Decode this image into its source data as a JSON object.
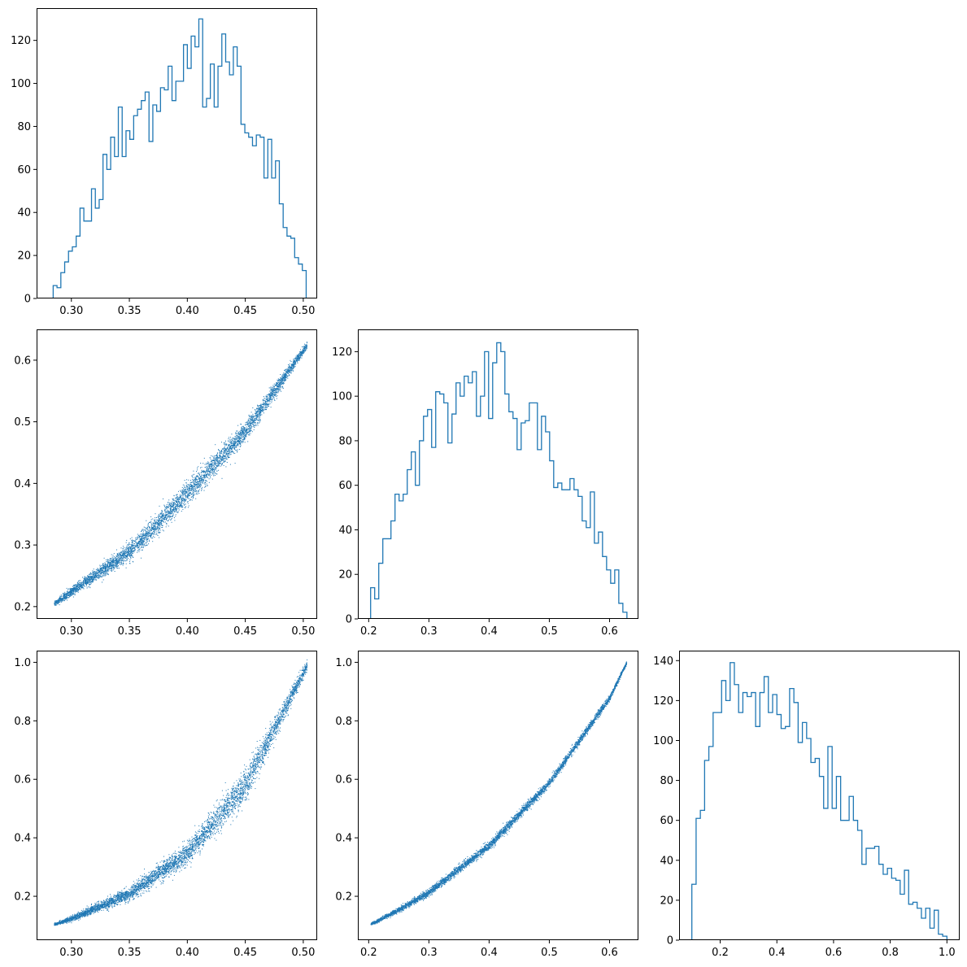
{
  "figure": {
    "title": "",
    "series_color": "#1f77b4"
  },
  "chart_data": [
    {
      "panel": "row1-col1",
      "type": "histogram",
      "histtype": "step",
      "xlim": [
        0.27,
        0.512
      ],
      "ylim": [
        0,
        135
      ],
      "x_ticks": [
        0.3,
        0.35,
        0.4,
        0.45,
        0.5
      ],
      "x_tick_labels": [
        "0.30",
        "0.35",
        "0.40",
        "0.45",
        "0.50"
      ],
      "y_ticks": [
        0,
        20,
        40,
        60,
        80,
        100,
        120
      ],
      "y_tick_labels": [
        "0",
        "20",
        "40",
        "60",
        "80",
        "100",
        "120"
      ],
      "bin_start": 0.2843,
      "bin_end": 0.5025,
      "counts": [
        6,
        5,
        12,
        17,
        22,
        24,
        29,
        42,
        36,
        36,
        51,
        42,
        46,
        67,
        60,
        75,
        66,
        89,
        66,
        78,
        74,
        85,
        88,
        92,
        96,
        73,
        90,
        87,
        98,
        97,
        108,
        92,
        101,
        101,
        118,
        107,
        122,
        117,
        130,
        89,
        93,
        109,
        89,
        108,
        123,
        110,
        104,
        117,
        108,
        81,
        77,
        75,
        71,
        76,
        75,
        56,
        74,
        56,
        64,
        44,
        33,
        29,
        28,
        19,
        16,
        13
      ]
    },
    {
      "panel": "row2-col1",
      "type": "scatter",
      "marker": "pixel",
      "xlim": [
        0.27,
        0.512
      ],
      "ylim": [
        0.18,
        0.65
      ],
      "x_ticks": [
        0.3,
        0.35,
        0.4,
        0.45,
        0.5
      ],
      "x_tick_labels": [
        "0.30",
        "0.35",
        "0.40",
        "0.45",
        "0.50"
      ],
      "y_ticks": [
        0.2,
        0.3,
        0.4,
        0.5,
        0.6
      ],
      "y_tick_labels": [
        "0.2",
        "0.3",
        "0.4",
        "0.5",
        "0.6"
      ],
      "n_points": 5000,
      "x_range": [
        0.285,
        0.503
      ],
      "curve_x": [
        0.285,
        0.3,
        0.35,
        0.4,
        0.45,
        0.503
      ],
      "curve_y": [
        0.205,
        0.225,
        0.29,
        0.385,
        0.485,
        0.625
      ],
      "band_half_width": [
        0.005,
        0.008,
        0.016,
        0.02,
        0.018,
        0.006
      ]
    },
    {
      "panel": "row2-col2",
      "type": "histogram",
      "histtype": "step",
      "xlim": [
        0.182,
        0.648
      ],
      "ylim": [
        0,
        130
      ],
      "x_ticks": [
        0.2,
        0.3,
        0.4,
        0.5,
        0.6
      ],
      "x_tick_labels": [
        "0.2",
        "0.3",
        "0.4",
        "0.5",
        "0.6"
      ],
      "y_ticks": [
        0,
        20,
        40,
        60,
        80,
        100,
        120
      ],
      "y_tick_labels": [
        "0",
        "20",
        "40",
        "60",
        "80",
        "100",
        "120"
      ],
      "bin_start": 0.2032,
      "bin_end": 0.6289,
      "counts": [
        14,
        9,
        25,
        36,
        36,
        44,
        56,
        53,
        56,
        67,
        75,
        60,
        80,
        91,
        94,
        77,
        102,
        101,
        97,
        79,
        92,
        106,
        100,
        109,
        106,
        111,
        91,
        100,
        120,
        90,
        115,
        124,
        120,
        101,
        93,
        90,
        76,
        88,
        89,
        97,
        97,
        76,
        91,
        84,
        71,
        59,
        61,
        58,
        58,
        63,
        58,
        55,
        44,
        41,
        57,
        34,
        39,
        28,
        22,
        16,
        22,
        7,
        3
      ]
    },
    {
      "panel": "row3-col1",
      "type": "scatter",
      "marker": "pixel",
      "xlim": [
        0.27,
        0.512
      ],
      "ylim": [
        0.05,
        1.04
      ],
      "x_ticks": [
        0.3,
        0.35,
        0.4,
        0.45,
        0.5
      ],
      "x_tick_labels": [
        "0.30",
        "0.35",
        "0.40",
        "0.45",
        "0.50"
      ],
      "y_ticks": [
        0.2,
        0.4,
        0.6,
        0.8,
        1.0
      ],
      "y_tick_labels": [
        "0.2",
        "0.4",
        "0.6",
        "0.8",
        "1.0"
      ],
      "n_points": 5000,
      "x_range": [
        0.285,
        0.503
      ],
      "curve_x": [
        0.285,
        0.3,
        0.35,
        0.4,
        0.45,
        0.503
      ],
      "curve_y": [
        0.105,
        0.125,
        0.21,
        0.35,
        0.58,
        0.99
      ],
      "band_half_width": [
        0.004,
        0.01,
        0.025,
        0.04,
        0.06,
        0.02
      ]
    },
    {
      "panel": "row3-col2",
      "type": "scatter",
      "marker": "pixel",
      "xlim": [
        0.182,
        0.648
      ],
      "ylim": [
        0.05,
        1.04
      ],
      "x_ticks": [
        0.2,
        0.3,
        0.4,
        0.5,
        0.6
      ],
      "x_tick_labels": [
        "0.2",
        "0.3",
        "0.4",
        "0.5",
        "0.6"
      ],
      "y_ticks": [
        0.2,
        0.4,
        0.6,
        0.8,
        1.0
      ],
      "y_tick_labels": [
        "0.2",
        "0.4",
        "0.6",
        "0.8",
        "1.0"
      ],
      "n_points": 5000,
      "x_range": [
        0.203,
        0.628
      ],
      "curve_x": [
        0.203,
        0.25,
        0.3,
        0.4,
        0.5,
        0.6,
        0.628
      ],
      "curve_y": [
        0.105,
        0.155,
        0.215,
        0.375,
        0.59,
        0.88,
        1.0
      ],
      "band_half_width": [
        0.005,
        0.01,
        0.013,
        0.016,
        0.016,
        0.012,
        0.006
      ]
    },
    {
      "panel": "row3-col3",
      "type": "histogram",
      "histtype": "step",
      "xlim": [
        0.055,
        1.045
      ],
      "ylim": [
        0,
        145
      ],
      "x_ticks": [
        0.2,
        0.4,
        0.6,
        0.8,
        1.0
      ],
      "x_tick_labels": [
        "0.2",
        "0.4",
        "0.6",
        "0.8",
        "1.0"
      ],
      "y_ticks": [
        0,
        20,
        40,
        60,
        80,
        100,
        120,
        140
      ],
      "y_tick_labels": [
        "0",
        "20",
        "40",
        "60",
        "80",
        "100",
        "120",
        "140"
      ],
      "bin_start": 0.1,
      "bin_end": 1.0,
      "counts": [
        28,
        61,
        65,
        90,
        97,
        114,
        114,
        130,
        120,
        139,
        128,
        114,
        124,
        122,
        124,
        107,
        124,
        132,
        114,
        123,
        113,
        106,
        107,
        126,
        119,
        99,
        109,
        101,
        89,
        91,
        82,
        66,
        97,
        66,
        82,
        60,
        60,
        72,
        60,
        55,
        38,
        46,
        46,
        47,
        38,
        33,
        36,
        31,
        30,
        23,
        35,
        18,
        19,
        16,
        11,
        16,
        6,
        15,
        3,
        2
      ]
    }
  ]
}
